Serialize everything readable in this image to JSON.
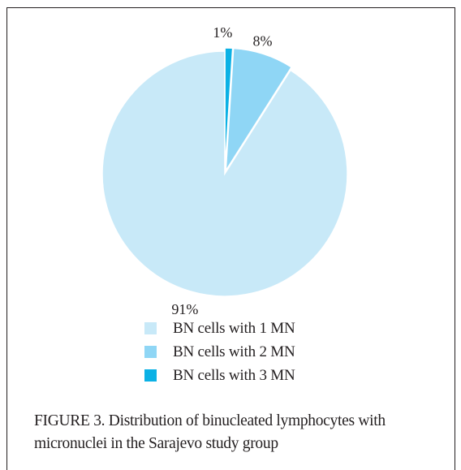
{
  "chart_data": {
    "type": "pie",
    "title": "",
    "slices": [
      {
        "label": "BN cells with 1 MN",
        "value": 91,
        "display": "91%",
        "color": "#c8e9f8"
      },
      {
        "label": "BN cells with 3 MN",
        "value": 1,
        "display": "1%",
        "color": "#0bb1e5"
      },
      {
        "label": "BN cells with 2 MN",
        "value": 8,
        "display": "8%",
        "color": "#8fd6f5"
      }
    ],
    "legend": [
      {
        "label": "BN cells with 1 MN",
        "color": "#c8e9f8"
      },
      {
        "label": "BN cells with 2 MN",
        "color": "#8fd6f5"
      },
      {
        "label": "BN cells with 3 MN",
        "color": "#0bb1e5"
      }
    ],
    "legend_position": "bottom",
    "exploded_slices": [
      "BN cells with 2 MN",
      "BN cells with 3 MN"
    ]
  },
  "caption": "FIGURE 3.  Distribution of binucleated lymphocytes with micronuclei in the Sarajevo study group"
}
